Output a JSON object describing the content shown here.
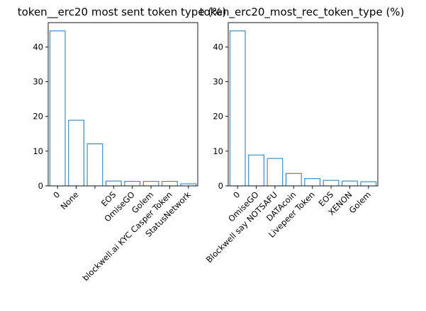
{
  "chart_data": [
    {
      "type": "bar",
      "title": "token__erc20 most sent token type (%)",
      "xlabel": "",
      "ylabel": "",
      "categories": [
        "0",
        "None",
        "",
        "EOS",
        "OmiseGO",
        "Golem",
        "blockwell.ai KYC Casper Token",
        "StatusNetwork"
      ],
      "values": [
        44.6,
        18.9,
        12.1,
        1.4,
        1.3,
        1.3,
        1.3,
        0.6
      ],
      "ylim": [
        0,
        47
      ],
      "yticks": [
        0,
        10,
        20,
        30,
        40
      ],
      "bar_color": "#1f77b4",
      "bar_fill": "#ffffff"
    },
    {
      "type": "bar",
      "title": "token_erc20_most_rec_token_type (%)",
      "xlabel": "",
      "ylabel": "",
      "categories": [
        "0",
        "OmiseGO",
        "Blockwell say NOTSAFU",
        "DATAcoin",
        "Livepeer Token",
        "EOS",
        "XENON",
        "Golem"
      ],
      "values": [
        44.6,
        8.9,
        7.9,
        3.6,
        2.1,
        1.6,
        1.4,
        1.2
      ],
      "ylim": [
        0,
        47
      ],
      "yticks": [
        0,
        10,
        20,
        30,
        40
      ],
      "bar_color": "#1f77b4",
      "bar_fill": "#ffffff"
    }
  ]
}
